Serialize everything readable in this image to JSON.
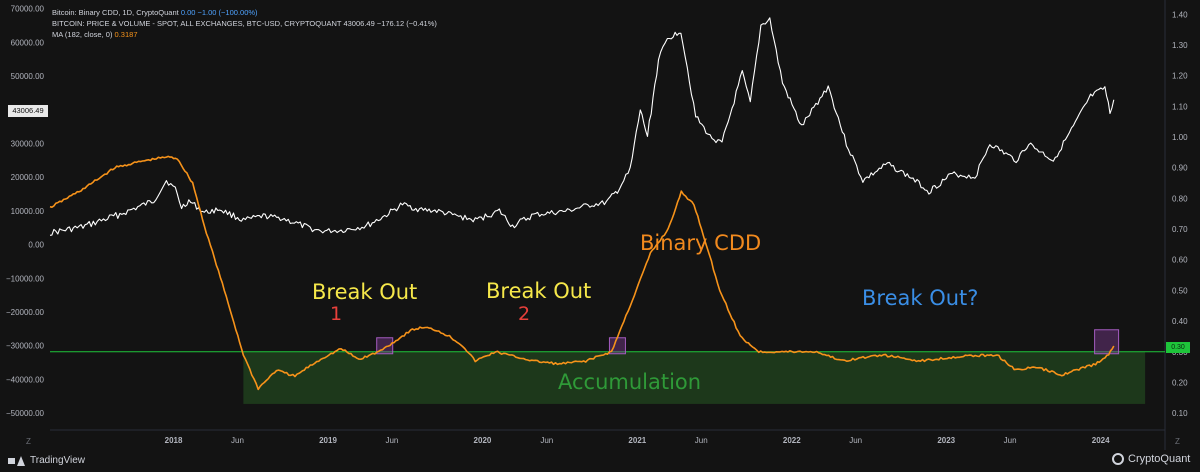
{
  "legend": {
    "line1": "Bitcoin: Binary CDD, 1D, CryptoQuant",
    "line1_values": "0.00  −1.00 (−100.00%)",
    "line2": "BITCOIN: PRICE & VOLUME - SPOT, ALL EXCHANGES, BTC-USD, CRYPTOQUANT",
    "line2_values": "43006.49  −176.12 (−0.41%)",
    "line3": "MA (182, close, 0)",
    "line3_value": "0.3187"
  },
  "price_badge": "43006.49",
  "right_badge": "0.30",
  "footer": {
    "left": "TradingView",
    "right": "CryptoQuant"
  },
  "corner_left": "Z",
  "corner_right": "Z",
  "annotations": {
    "break_out_1": "Break Out",
    "num_1": "1",
    "break_out_2": "Break Out",
    "num_2": "2",
    "binary_cdd": "Binary CDD",
    "break_out_q": "Break Out?",
    "accumulation": "Accumulation"
  },
  "colors": {
    "background": "#131313",
    "price_line": "#ffffff",
    "cdd_ma_line": "#f7931a",
    "threshold_line": "#1ec43a",
    "accumulation_zone": "#1f3d1d",
    "highlight_box": "#7a3a8e"
  },
  "chart_data": {
    "type": "line",
    "title": "",
    "x_axis": {
      "ticks": [
        "2018",
        "Jun",
        "2019",
        "Jun",
        "2020",
        "Jun",
        "2021",
        "Jun",
        "2022",
        "Jun",
        "2023",
        "Jun",
        "2024"
      ],
      "tick_dates": [
        "2018-01-01",
        "2018-06-01",
        "2019-01-01",
        "2019-06-01",
        "2020-01-01",
        "2020-06-01",
        "2021-01-01",
        "2021-06-01",
        "2022-01-01",
        "2022-06-01",
        "2023-01-01",
        "2023-06-01",
        "2024-01-01"
      ],
      "range": [
        "2017-03-15",
        "2024-06-01"
      ]
    },
    "left_axis": {
      "ticks": [
        "70000.00",
        "60000.00",
        "50000.00",
        "40000.00",
        "30000.00",
        "20000.00",
        "10000.00",
        "0.00",
        "−10000.00",
        "−20000.00",
        "−30000.00",
        "−40000.00",
        "−50000.00"
      ],
      "range": [
        -55000,
        72000
      ]
    },
    "right_axis": {
      "ticks": [
        "1.40",
        "1.30",
        "1.20",
        "1.10",
        "1.00",
        "0.90",
        "0.80",
        "0.70",
        "0.60",
        "0.50",
        "0.40",
        "0.30",
        "0.20",
        "0.10"
      ],
      "range": [
        0.045,
        1.44
      ]
    },
    "threshold": 0.3,
    "accumulation_zone": {
      "date_from": "2018-06-15",
      "date_to": "2024-04-15",
      "y_from": 0.13,
      "y_to": 0.3
    },
    "highlight_boxes": [
      {
        "date": "2019-05-15",
        "y": 0.3
      },
      {
        "date": "2020-11-15",
        "y": 0.3
      },
      {
        "date": "2024-01-15",
        "y": 0.3
      }
    ],
    "series": [
      {
        "axis": "left",
        "color": "#ffffff",
        "points": [
          [
            "2017-03-15",
            3500
          ],
          [
            "2017-06-01",
            5300
          ],
          [
            "2017-09-01",
            9200
          ],
          [
            "2017-11-15",
            13000
          ],
          [
            "2017-12-15",
            19000
          ],
          [
            "2018-01-05",
            16500
          ],
          [
            "2018-01-20",
            11000
          ],
          [
            "2018-02-06",
            13000
          ],
          [
            "2018-03-15",
            9500
          ],
          [
            "2018-04-20",
            10500
          ],
          [
            "2018-06-15",
            7200
          ],
          [
            "2018-08-01",
            8500
          ],
          [
            "2018-09-15",
            7800
          ],
          [
            "2018-11-20",
            4800
          ],
          [
            "2018-12-15",
            4000
          ],
          [
            "2019-02-01",
            4200
          ],
          [
            "2019-04-01",
            5500
          ],
          [
            "2019-05-15",
            8500
          ],
          [
            "2019-06-26",
            12000
          ],
          [
            "2019-08-01",
            10500
          ],
          [
            "2019-09-15",
            10000
          ],
          [
            "2019-11-01",
            8500
          ],
          [
            "2019-12-15",
            7200
          ],
          [
            "2020-02-10",
            10000
          ],
          [
            "2020-03-12",
            5500
          ],
          [
            "2020-05-01",
            8800
          ],
          [
            "2020-07-20",
            10000
          ],
          [
            "2020-09-01",
            11500
          ],
          [
            "2020-10-20",
            12500
          ],
          [
            "2020-11-15",
            16000
          ],
          [
            "2020-12-15",
            22000
          ],
          [
            "2021-01-08",
            40000
          ],
          [
            "2021-01-25",
            32000
          ],
          [
            "2021-02-20",
            55000
          ],
          [
            "2021-03-13",
            61000
          ],
          [
            "2021-04-14",
            63500
          ],
          [
            "2021-05-19",
            38000
          ],
          [
            "2021-06-22",
            32000
          ],
          [
            "2021-07-20",
            30000
          ],
          [
            "2021-09-06",
            51000
          ],
          [
            "2021-09-25",
            42000
          ],
          [
            "2021-10-20",
            65000
          ],
          [
            "2021-11-10",
            67000
          ],
          [
            "2021-12-10",
            48000
          ],
          [
            "2022-01-24",
            35000
          ],
          [
            "2022-03-28",
            47000
          ],
          [
            "2022-05-10",
            30000
          ],
          [
            "2022-06-18",
            19000
          ],
          [
            "2022-08-15",
            24000
          ],
          [
            "2022-10-15",
            19500
          ],
          [
            "2022-11-21",
            15800
          ],
          [
            "2023-01-15",
            21000
          ],
          [
            "2023-03-10",
            20000
          ],
          [
            "2023-04-14",
            30000
          ],
          [
            "2023-06-15",
            25000
          ],
          [
            "2023-07-15",
            30000
          ],
          [
            "2023-09-11",
            25000
          ],
          [
            "2023-10-24",
            34000
          ],
          [
            "2023-12-08",
            44000
          ],
          [
            "2024-01-11",
            46500
          ],
          [
            "2024-01-23",
            39000
          ],
          [
            "2024-02-01",
            43006.49
          ]
        ]
      },
      {
        "axis": "right",
        "color": "#f7931a",
        "points": [
          [
            "2017-03-15",
            0.77
          ],
          [
            "2017-06-01",
            0.83
          ],
          [
            "2017-08-15",
            0.9
          ],
          [
            "2017-10-15",
            0.92
          ],
          [
            "2017-12-15",
            0.935
          ],
          [
            "2018-01-10",
            0.93
          ],
          [
            "2018-02-15",
            0.85
          ],
          [
            "2018-03-15",
            0.71
          ],
          [
            "2018-05-01",
            0.5
          ],
          [
            "2018-06-15",
            0.29
          ],
          [
            "2018-07-20",
            0.18
          ],
          [
            "2018-09-01",
            0.24
          ],
          [
            "2018-10-15",
            0.22
          ],
          [
            "2018-11-15",
            0.25
          ],
          [
            "2018-12-20",
            0.28
          ],
          [
            "2019-02-01",
            0.31
          ],
          [
            "2019-03-15",
            0.275
          ],
          [
            "2019-05-01",
            0.3
          ],
          [
            "2019-06-15",
            0.34
          ],
          [
            "2019-07-15",
            0.37
          ],
          [
            "2019-08-15",
            0.38
          ],
          [
            "2019-09-15",
            0.37
          ],
          [
            "2019-10-15",
            0.35
          ],
          [
            "2019-11-15",
            0.32
          ],
          [
            "2019-12-15",
            0.27
          ],
          [
            "2020-02-01",
            0.3
          ],
          [
            "2020-03-15",
            0.285
          ],
          [
            "2020-05-01",
            0.27
          ],
          [
            "2020-07-01",
            0.26
          ],
          [
            "2020-09-01",
            0.27
          ],
          [
            "2020-11-01",
            0.3
          ],
          [
            "2020-12-15",
            0.45
          ],
          [
            "2021-02-01",
            0.62
          ],
          [
            "2021-03-15",
            0.7
          ],
          [
            "2021-04-15",
            0.82
          ],
          [
            "2021-05-15",
            0.78
          ],
          [
            "2021-06-15",
            0.64
          ],
          [
            "2021-07-15",
            0.5
          ],
          [
            "2021-09-01",
            0.35
          ],
          [
            "2021-10-15",
            0.3
          ],
          [
            "2022-01-01",
            0.3
          ],
          [
            "2022-03-01",
            0.3
          ],
          [
            "2022-05-01",
            0.27
          ],
          [
            "2022-08-01",
            0.29
          ],
          [
            "2022-11-01",
            0.27
          ],
          [
            "2023-02-01",
            0.285
          ],
          [
            "2023-05-01",
            0.29
          ],
          [
            "2023-06-15",
            0.24
          ],
          [
            "2023-08-01",
            0.25
          ],
          [
            "2023-10-01",
            0.225
          ],
          [
            "2023-11-15",
            0.245
          ],
          [
            "2023-12-20",
            0.26
          ],
          [
            "2024-01-20",
            0.29
          ],
          [
            "2024-02-01",
            0.3187
          ]
        ]
      }
    ]
  }
}
